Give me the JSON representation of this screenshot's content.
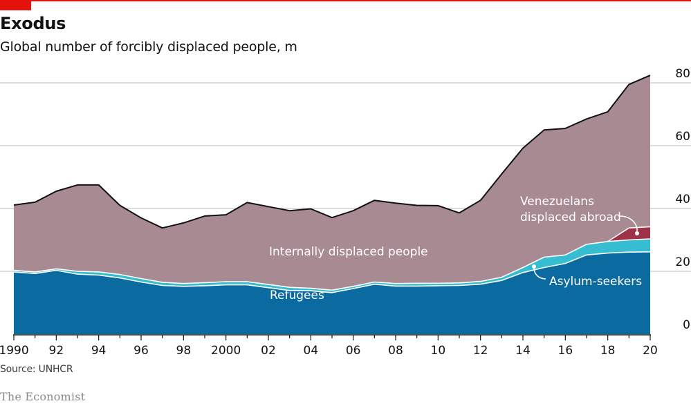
{
  "header": {
    "title": "Exodus",
    "subtitle": "Global number of forcibly displaced people, m"
  },
  "footer": {
    "source": "Source: UNHCR",
    "brand": "The Economist"
  },
  "colors": {
    "brand_red": "#e3120b",
    "refugees": "#0b6ba1",
    "asylum_seekers": "#36bdd1",
    "venezuelans": "#9e3248",
    "idp": "#a88a93",
    "total_line": "#121212",
    "gridline": "#c8c8c8"
  },
  "chart_data": {
    "type": "area",
    "stacked": true,
    "title": "Exodus",
    "subtitle": "Global number of forcibly displaced people, m",
    "xlabel": "",
    "ylabel": "m",
    "x": [
      1990,
      1991,
      1992,
      1993,
      1994,
      1995,
      1996,
      1997,
      1998,
      1999,
      2000,
      2001,
      2002,
      2003,
      2004,
      2005,
      2006,
      2007,
      2008,
      2009,
      2010,
      2011,
      2012,
      2013,
      2014,
      2015,
      2016,
      2017,
      2018,
      2019,
      2020
    ],
    "xlim": [
      1990,
      2020
    ],
    "ylim": [
      0,
      80
    ],
    "y_ticks": [
      0,
      20,
      40,
      60,
      80
    ],
    "y_tick_labels": [
      "0",
      "20",
      "40",
      "60",
      "80"
    ],
    "y_axis_side": "right",
    "x_ticks": [
      1990,
      1992,
      1994,
      1996,
      1998,
      2000,
      2002,
      2004,
      2006,
      2008,
      2010,
      2012,
      2014,
      2016,
      2018,
      2020
    ],
    "x_tick_labels": [
      "1990",
      "92",
      "94",
      "96",
      "98",
      "2000",
      "02",
      "04",
      "06",
      "08",
      "10",
      "12",
      "14",
      "16",
      "18",
      "20"
    ],
    "grid": true,
    "series": [
      {
        "name": "Refugees",
        "key": "refugees",
        "values": [
          19.8,
          19.3,
          20.3,
          19.1,
          18.8,
          17.9,
          16.6,
          15.5,
          15.2,
          15.4,
          15.7,
          15.7,
          14.8,
          13.9,
          13.8,
          13.2,
          14.5,
          15.9,
          15.3,
          15.3,
          15.4,
          15.5,
          15.9,
          17.1,
          19.6,
          21.2,
          22.5,
          25.2,
          25.8,
          26.1,
          26.2
        ]
      },
      {
        "name": "Asylum-seekers",
        "key": "asylum_seekers",
        "values": [
          0.5,
          0.5,
          0.5,
          0.9,
          1.0,
          1.1,
          1.1,
          1.0,
          0.9,
          1.0,
          1.0,
          1.0,
          1.0,
          1.0,
          0.8,
          0.8,
          0.7,
          0.7,
          0.8,
          0.9,
          0.8,
          0.8,
          0.9,
          1.0,
          1.6,
          3.3,
          2.7,
          3.4,
          3.7,
          3.9,
          4.1
        ]
      },
      {
        "name": "Venezuelans displaced abroad",
        "key": "venezuelans",
        "values": [
          0,
          0,
          0,
          0,
          0,
          0,
          0,
          0,
          0,
          0,
          0,
          0,
          0,
          0,
          0,
          0,
          0,
          0,
          0,
          0,
          0,
          0,
          0,
          0,
          0,
          0,
          0,
          0,
          0.0,
          3.8,
          3.9
        ]
      },
      {
        "name": "Internally displaced people",
        "key": "idp",
        "values": [
          20.8,
          22.2,
          24.7,
          27.5,
          27.7,
          22.0,
          19.3,
          17.3,
          19.3,
          21.2,
          21.3,
          25.2,
          24.8,
          24.4,
          25.3,
          23.1,
          24.1,
          26.0,
          25.6,
          24.8,
          24.7,
          22.3,
          25.8,
          32.9,
          38.0,
          40.5,
          40.3,
          39.9,
          41.3,
          45.7,
          48.2
        ]
      }
    ],
    "totals": [
      41.1,
      42.0,
      45.5,
      47.5,
      47.5,
      41.0,
      37.0,
      33.8,
      35.4,
      37.6,
      38.0,
      41.9,
      40.6,
      39.3,
      39.9,
      37.1,
      39.3,
      42.6,
      41.7,
      41.0,
      40.9,
      38.6,
      42.6,
      51.0,
      59.2,
      65.0,
      65.5,
      68.5,
      70.8,
      79.5,
      82.4
    ],
    "annotations": [
      {
        "text": "Internally displaced people",
        "series": "idp"
      },
      {
        "text": "Refugees",
        "series": "refugees"
      },
      {
        "text": "Asylum-seekers",
        "series": "asylum_seekers",
        "callout": true
      },
      {
        "text_lines": [
          "Venezuelans",
          "displaced abroad"
        ],
        "series": "venezuelans",
        "callout": true
      }
    ],
    "legend": "none (direct labels)"
  }
}
